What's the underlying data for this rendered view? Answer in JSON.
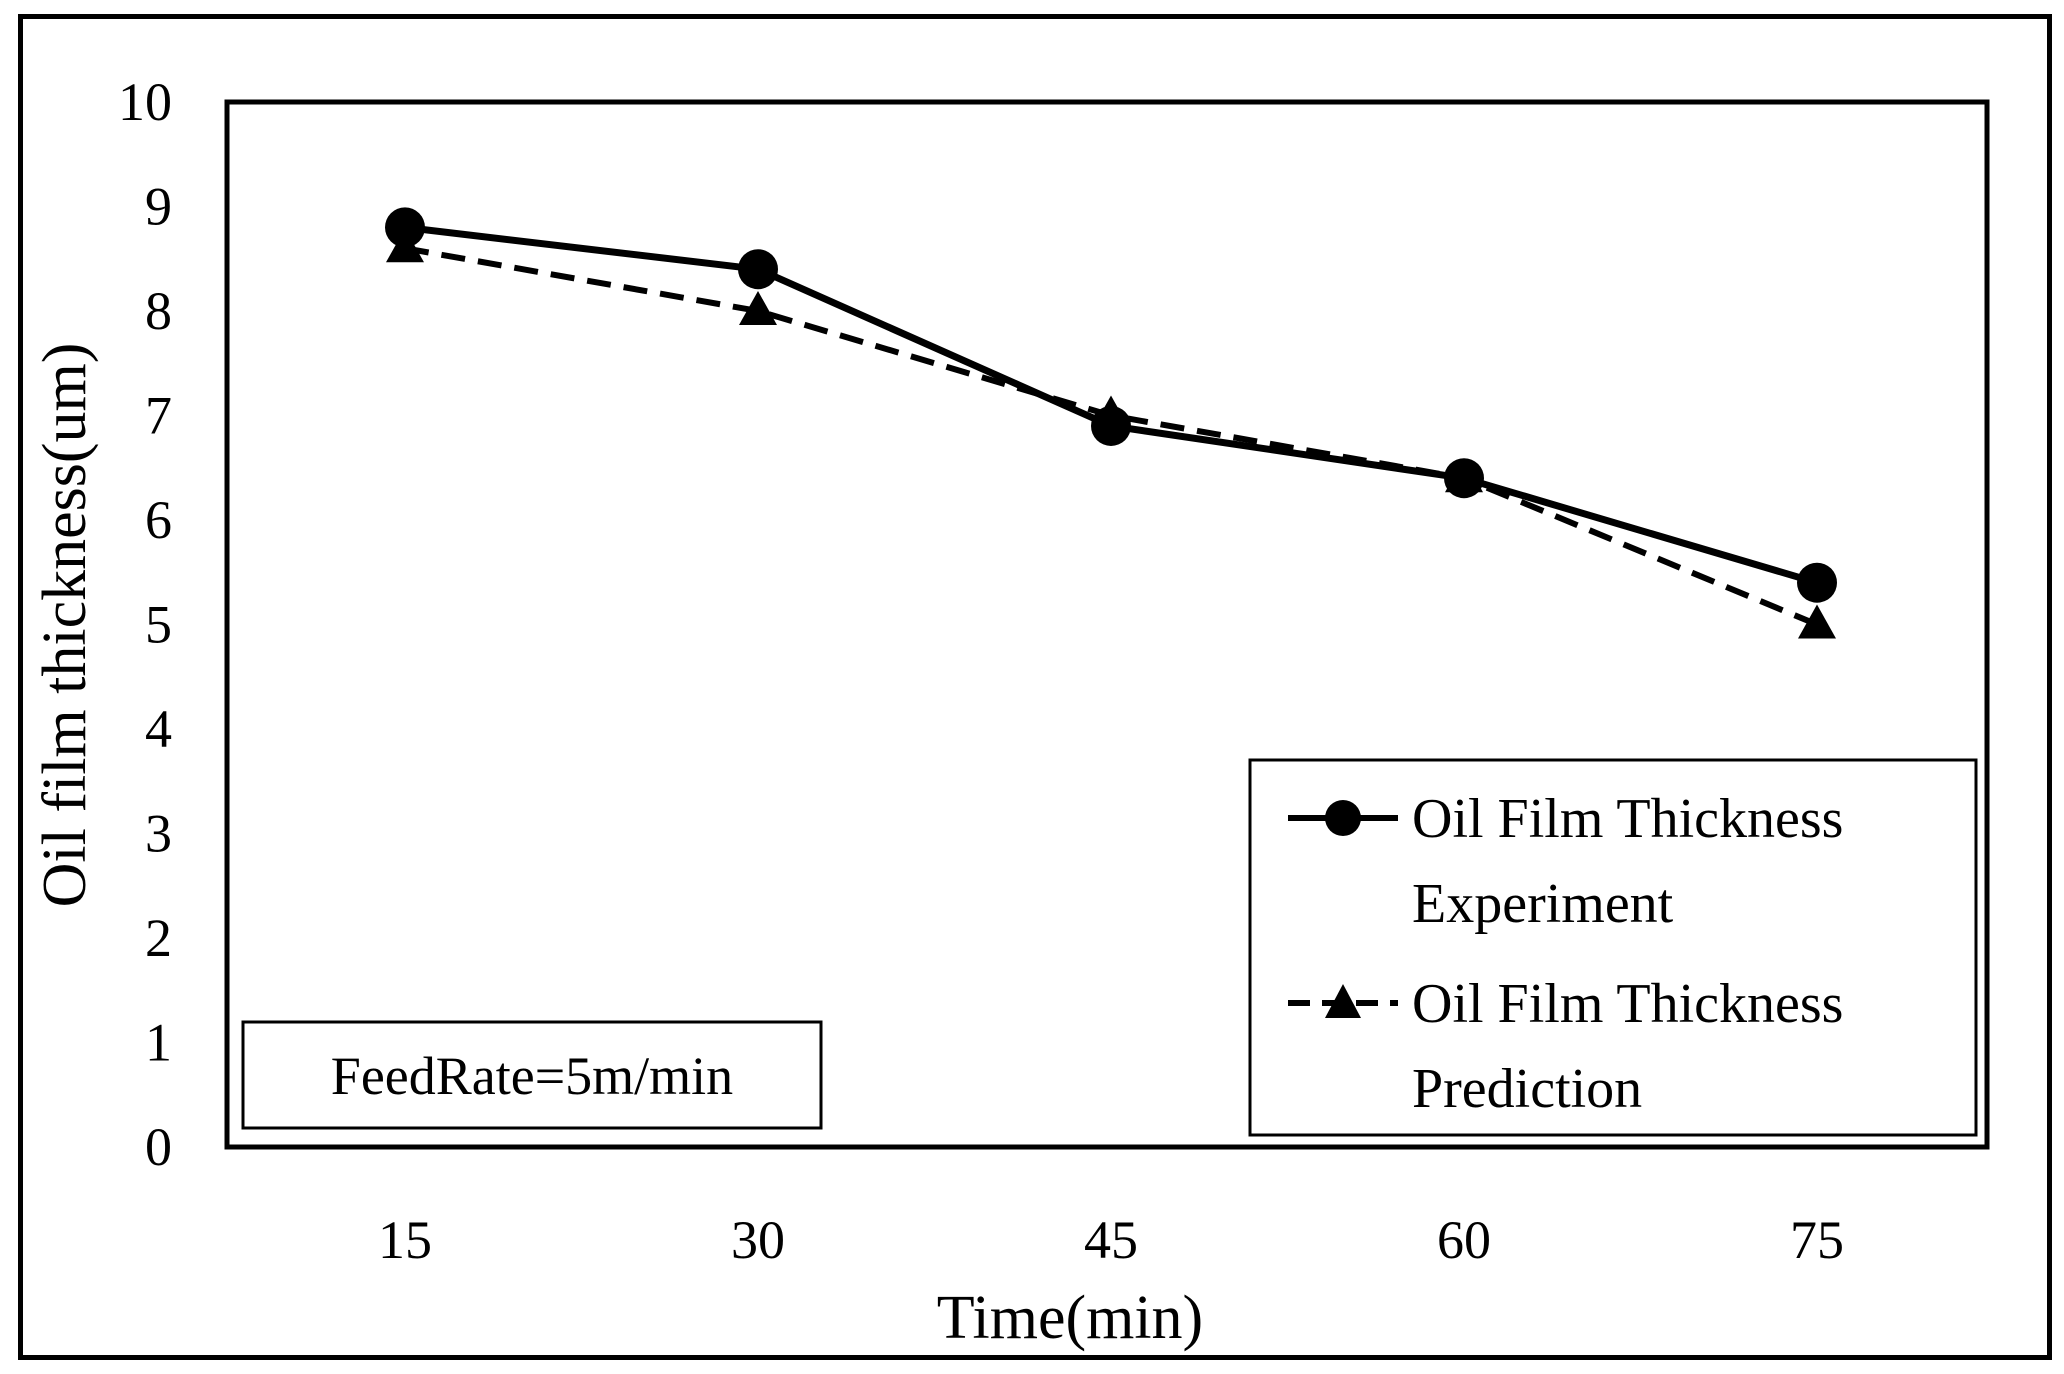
{
  "chart_data": {
    "type": "line",
    "title": "",
    "xlabel": "Time(min)",
    "ylabel": "Oil film thickness(um)",
    "categories": [
      "15",
      "30",
      "45",
      "60",
      "75"
    ],
    "ylim": [
      0,
      10
    ],
    "yticks": [
      "0",
      "1",
      "2",
      "3",
      "4",
      "5",
      "6",
      "7",
      "8",
      "9",
      "10"
    ],
    "grid": false,
    "legend_position": "bottom-right",
    "series": [
      {
        "name": "Oil Film Thickness Experiment",
        "legend_lines": [
          "Oil Film Thickness",
          "Experiment"
        ],
        "values": [
          8.8,
          8.4,
          6.9,
          6.4,
          5.4
        ],
        "marker": "circle",
        "line_style": "solid",
        "color": "#000000"
      },
      {
        "name": "Oil Film Thickness Prediction",
        "legend_lines": [
          "Oil Film Thickness",
          "Prediction"
        ],
        "values": [
          8.6,
          8.0,
          7.0,
          6.4,
          5.0
        ],
        "marker": "triangle",
        "line_style": "dashed",
        "color": "#000000"
      }
    ],
    "annotation": "FeedRate=5m/min"
  }
}
